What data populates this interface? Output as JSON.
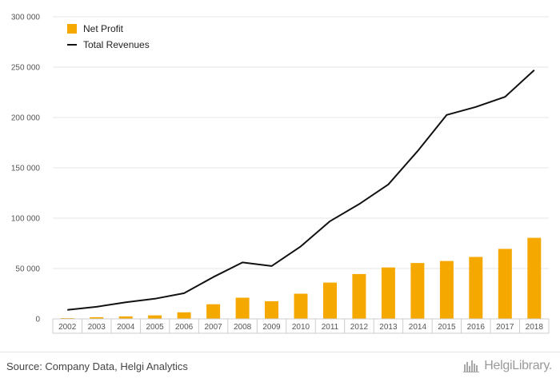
{
  "chart_data": {
    "type": "bar",
    "categories": [
      "2002",
      "2003",
      "2004",
      "2005",
      "2006",
      "2007",
      "2008",
      "2009",
      "2010",
      "2011",
      "2012",
      "2013",
      "2014",
      "2015",
      "2016",
      "2017",
      "2018"
    ],
    "series": [
      {
        "name": "Net Profit",
        "type": "bar",
        "color": "#f5a800",
        "values": [
          800,
          1700,
          2500,
          3500,
          6500,
          14500,
          21000,
          17500,
          25000,
          36000,
          44500,
          51000,
          55500,
          57500,
          61500,
          69500,
          80500
        ]
      },
      {
        "name": "Total Revenues",
        "type": "line",
        "color": "#111111",
        "values": [
          9000,
          12000,
          16500,
          20000,
          25500,
          41500,
          56000,
          52500,
          72000,
          97000,
          114000,
          133500,
          166500,
          202500,
          210500,
          220500,
          247000
        ]
      }
    ],
    "ylim": [
      0,
      300000
    ],
    "y_ticks": [
      "0",
      "50 000",
      "100 000",
      "150 000",
      "200 000",
      "250 000",
      "300 000"
    ],
    "y_tick_values": [
      0,
      50000,
      100000,
      150000,
      200000,
      250000,
      300000
    ],
    "grid": true,
    "legend_position": "top-left"
  },
  "footer": {
    "source": "Source: Company Data, Helgi Analytics",
    "brand": "HelgiLibrary."
  },
  "colors": {
    "bar": "#f5a800",
    "line": "#111111",
    "grid": "#e6e6e6"
  }
}
